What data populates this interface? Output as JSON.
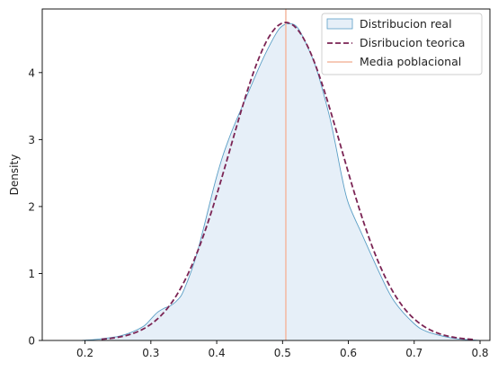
{
  "chart_data": {
    "type": "area",
    "xlabel": "",
    "ylabel": "Density",
    "xlim": [
      0.135,
      0.815
    ],
    "ylim": [
      0,
      4.95
    ],
    "xticks": [
      0.2,
      0.3,
      0.4,
      0.5,
      0.6,
      0.7,
      0.8
    ],
    "yticks": [
      0,
      1,
      2,
      3,
      4
    ],
    "xtick_labels": [
      "0.2",
      "0.3",
      "0.4",
      "0.5",
      "0.6",
      "0.7",
      "0.8"
    ],
    "ytick_labels": [
      "0",
      "1",
      "2",
      "3",
      "4"
    ],
    "legend_position": "top-right",
    "grid": false,
    "series": [
      {
        "name": "Distribucion real",
        "style": "filled-area",
        "fill_color": "#e6eff8",
        "line_color": "#5a9ec5",
        "x": [
          0.195,
          0.22,
          0.25,
          0.27,
          0.29,
          0.3,
          0.31,
          0.32,
          0.33,
          0.34,
          0.35,
          0.37,
          0.4,
          0.42,
          0.45,
          0.47,
          0.49,
          0.5,
          0.51,
          0.52,
          0.53,
          0.55,
          0.57,
          0.58,
          0.59,
          0.6,
          0.62,
          0.65,
          0.67,
          0.7,
          0.72,
          0.75,
          0.77,
          0.8
        ],
        "values": [
          0.0,
          0.02,
          0.06,
          0.12,
          0.22,
          0.32,
          0.42,
          0.48,
          0.52,
          0.6,
          0.75,
          1.3,
          2.45,
          3.05,
          3.75,
          4.2,
          4.58,
          4.7,
          4.73,
          4.7,
          4.55,
          4.1,
          3.4,
          2.95,
          2.45,
          2.05,
          1.6,
          0.95,
          0.58,
          0.25,
          0.13,
          0.05,
          0.02,
          0.0
        ]
      },
      {
        "name": "Disribucion teorica",
        "style": "dashed",
        "color": "#7b2454",
        "mean": 0.505,
        "std": 0.084,
        "x_range": [
          0.225,
          0.79
        ]
      },
      {
        "name": "Media poblacional",
        "style": "vline",
        "color": "#f4b8a0",
        "x": 0.505
      }
    ]
  }
}
